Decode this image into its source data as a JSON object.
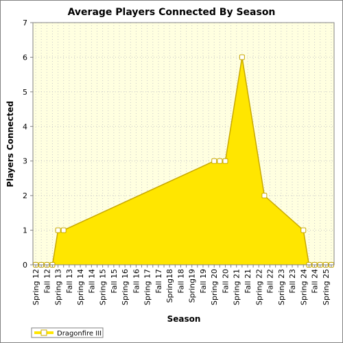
{
  "chart_data": {
    "type": "area",
    "title": "Average Players Connected By Season",
    "xlabel": "Season",
    "ylabel": "Players Connected",
    "ylim": [
      0,
      7
    ],
    "yticks": [
      0,
      1,
      2,
      3,
      4,
      5,
      6,
      7
    ],
    "grid": true,
    "legend": "bottom-left",
    "categories": [
      "Spring 12",
      "",
      "Fall 12",
      "",
      "Spring 13",
      "",
      "Fall 13",
      "",
      "Spring 14",
      "",
      "Fall 14",
      "",
      "Spring 15",
      "",
      "Fall 15",
      "",
      "Spring 16",
      "",
      "Fall 16",
      "",
      "Spring 17",
      "",
      "Fall 17",
      "",
      "Spring18",
      "",
      "Fall 18",
      "",
      "Spring19",
      "",
      "Fall 19",
      "",
      "Spring 20",
      "",
      "Fall 20",
      "",
      "Spring 21",
      "",
      "Fall 21",
      "",
      "Spring 22",
      "",
      "Fall 22",
      "",
      "Spring 23",
      "",
      "Fall 23",
      "",
      "Spring 24",
      "",
      "Fall 24",
      "",
      "Spring 25",
      ""
    ],
    "series": [
      {
        "name": "Dragonfire III",
        "color": "#ffe600",
        "line_color": "#c8a800",
        "points": [
          {
            "i": 0,
            "y": 0
          },
          {
            "i": 1,
            "y": 0
          },
          {
            "i": 2,
            "y": 0
          },
          {
            "i": 3,
            "y": 0
          },
          {
            "i": 4,
            "y": 1
          },
          {
            "i": 5,
            "y": 1
          },
          {
            "i": 32,
            "y": 3
          },
          {
            "i": 33,
            "y": 3
          },
          {
            "i": 34,
            "y": 3
          },
          {
            "i": 37,
            "y": 6
          },
          {
            "i": 41,
            "y": 2
          },
          {
            "i": 48,
            "y": 1
          },
          {
            "i": 49,
            "y": 0
          },
          {
            "i": 50,
            "y": 0
          },
          {
            "i": 51,
            "y": 0
          },
          {
            "i": 52,
            "y": 0
          },
          {
            "i": 53,
            "y": 0
          }
        ]
      }
    ]
  },
  "colors": {
    "plot_bg": "#ffffe0",
    "grid": "#c8c8c8",
    "marker_fill": "#ffffff"
  }
}
